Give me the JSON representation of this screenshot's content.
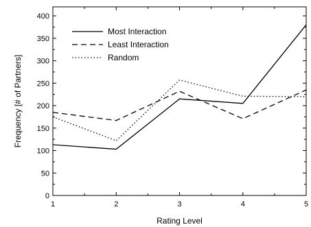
{
  "chart_data": {
    "type": "line",
    "xlabel": "Rating Level",
    "ylabel": "Frequency [# of Partners]",
    "x": [
      1,
      2,
      3,
      4,
      5
    ],
    "xlim": [
      1,
      5
    ],
    "ylim": [
      0,
      420
    ],
    "xticks": [
      "1",
      "2",
      "3",
      "4",
      "5"
    ],
    "yticks": [
      "0",
      "50",
      "100",
      "150",
      "200",
      "250",
      "300",
      "350",
      "400"
    ],
    "legend_position": "top-left",
    "grid": false,
    "series": [
      {
        "name": "Most Interaction",
        "style": "solid",
        "values": [
          113,
          103,
          215,
          205,
          380
        ]
      },
      {
        "name": "Least Interaction",
        "style": "dashed",
        "values": [
          185,
          167,
          232,
          171,
          235
        ]
      },
      {
        "name": "Random",
        "style": "dotted",
        "values": [
          175,
          122,
          257,
          221,
          220
        ]
      }
    ]
  }
}
